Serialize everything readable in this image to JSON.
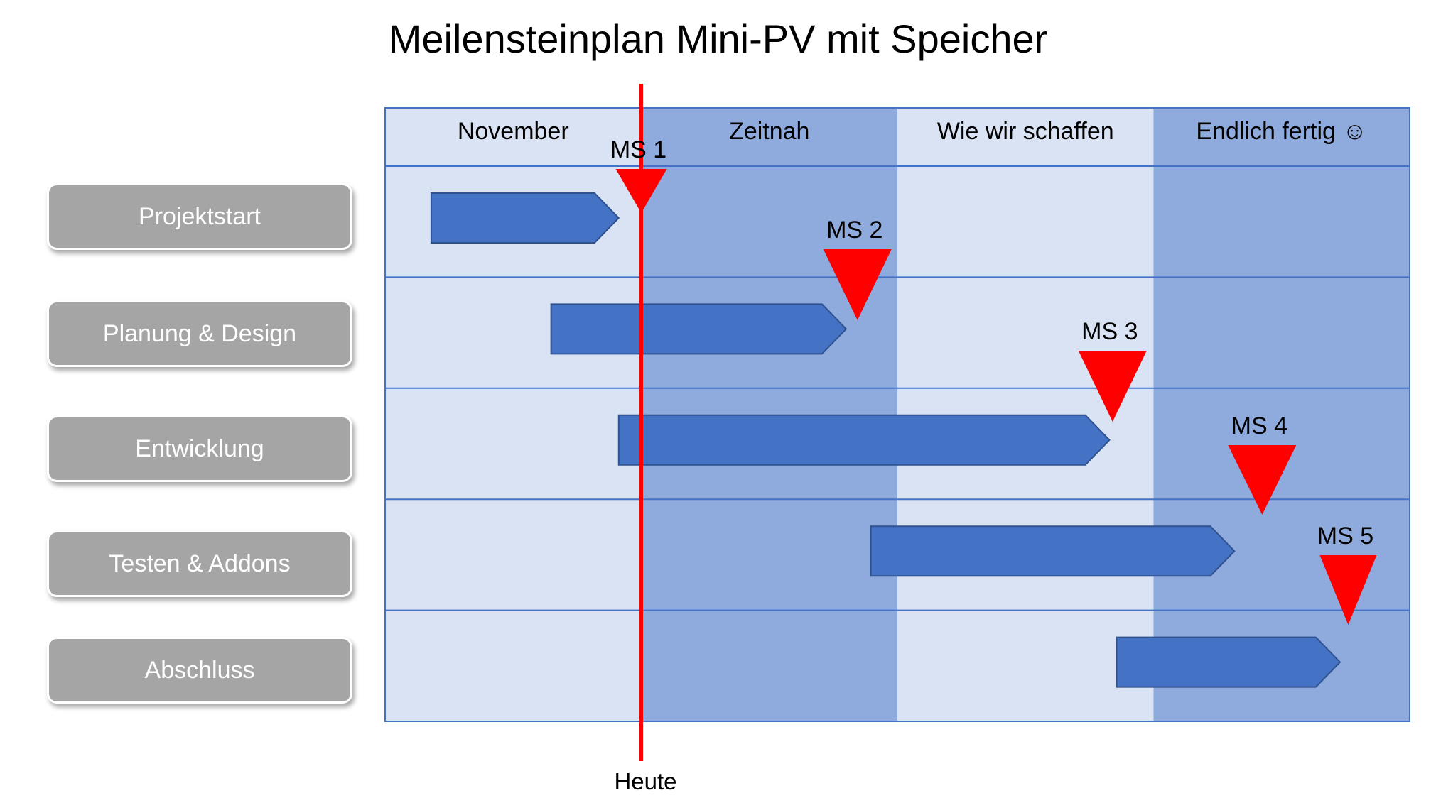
{
  "title": "Meilensteinplan Mini-PV mit Speicher",
  "today_label": "Heute",
  "today_position": 0.25,
  "colors": {
    "light_column": "#dae3f3",
    "dark_column": "#8faadc",
    "grid_line": "#4472c4",
    "bar": "#4472c4",
    "bar_border": "#2f528f",
    "milestone": "#ff0000",
    "today_line": "#ff0000",
    "row_label_bg": "#a5a5a5"
  },
  "columns": [
    {
      "label": "November",
      "shade": "light"
    },
    {
      "label": "Zeitnah",
      "shade": "dark"
    },
    {
      "label": "Wie wir schaffen",
      "shade": "light"
    },
    {
      "label": "Endlich fertig ☺",
      "shade": "dark"
    }
  ],
  "rows": [
    {
      "label": "Projektstart",
      "bar_start": 0.045,
      "bar_end": 0.228
    },
    {
      "label": "Planung & Design",
      "bar_start": 0.162,
      "bar_end": 0.45
    },
    {
      "label": "Entwicklung",
      "bar_start": 0.228,
      "bar_end": 0.707
    },
    {
      "label": "Testen & Addons",
      "bar_start": 0.474,
      "bar_end": 0.829
    },
    {
      "label": "Abschluss",
      "bar_start": 0.714,
      "bar_end": 0.932
    }
  ],
  "milestones": [
    {
      "label": "MS 1",
      "position": 0.25,
      "row": 0
    },
    {
      "label": "MS 2",
      "position": 0.461,
      "row": 0
    },
    {
      "label": "MS 3",
      "position": 0.71,
      "row": 1
    },
    {
      "label": "MS 4",
      "position": 0.856,
      "row": 2
    },
    {
      "label": "MS 5",
      "position": 0.94,
      "row": 3
    }
  ]
}
